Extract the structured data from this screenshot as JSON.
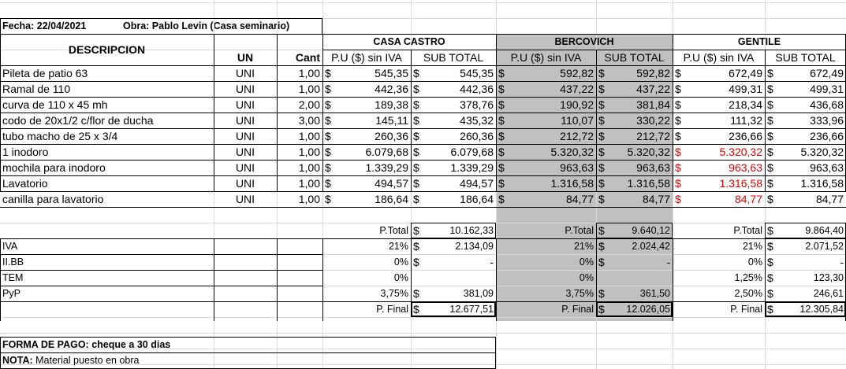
{
  "header": {
    "fecha": "Fecha: 22/04/2021",
    "obra": "Obra: Pablo Levin (Casa seminario)"
  },
  "columns": {
    "descripcion": "DESCRIPCION",
    "un": "UN",
    "cant": "Cant",
    "pu": "P.U ($) sin IVA",
    "sub": "SUB TOTAL"
  },
  "vendors": [
    {
      "name": "CASA CASTRO"
    },
    {
      "name": "BERCOVICH"
    },
    {
      "name": "GENTILE"
    }
  ],
  "currency": "$",
  "items": [
    {
      "desc": "Pileta de patio 63",
      "un": "UNI",
      "cant": "1,00",
      "vals": [
        "545,35",
        "545,35",
        "592,82",
        "592,82",
        "672,49",
        "672,49"
      ]
    },
    {
      "desc": "Ramal de 110",
      "un": "UNI",
      "cant": "1,00",
      "vals": [
        "442,36",
        "442,36",
        "437,22",
        "437,22",
        "499,31",
        "499,31"
      ]
    },
    {
      "desc": "curva de 110 x 45 mh",
      "un": "UNI",
      "cant": "2,00",
      "vals": [
        "189,38",
        "378,76",
        "190,92",
        "381,84",
        "218,34",
        "436,68"
      ]
    },
    {
      "desc": "codo de 20x1/2 c/flor de ducha",
      "un": "UNI",
      "cant": "3,00",
      "vals": [
        "145,11",
        "435,32",
        "110,07",
        "330,22",
        "111,32",
        "333,96"
      ]
    },
    {
      "desc": "tubo macho de 25 x 3/4",
      "un": "UNI",
      "cant": "1,00",
      "vals": [
        "260,36",
        "260,36",
        "212,72",
        "212,72",
        "236,66",
        "236,66"
      ]
    },
    {
      "desc": "1 inodoro",
      "un": "UNI",
      "cant": "1,00",
      "vals": [
        "6.079,68",
        "6.079,68",
        "5.320,32",
        "5.320,32",
        "5.320,32",
        "5.320,32"
      ],
      "red": true
    },
    {
      "desc": "mochila para inodoro",
      "un": "UNI",
      "cant": "1,00",
      "vals": [
        "1.339,29",
        "1.339,29",
        "963,63",
        "963,63",
        "963,63",
        "963,63"
      ],
      "red": true
    },
    {
      "desc": "Lavatorio",
      "un": "UNI",
      "cant": "1,00",
      "vals": [
        "494,57",
        "494,57",
        "1.316,58",
        "1.316,58",
        "1.316,58",
        "1.316,58"
      ],
      "red": true
    },
    {
      "desc": "canilla para lavatorio",
      "un": "UNI",
      "cant": "1,00",
      "vals": [
        "186,64",
        "186,64",
        "84,77",
        "84,77",
        "84,77",
        "84,77"
      ],
      "red": true
    }
  ],
  "summary": [
    {
      "label": "",
      "cells": [
        [
          "P.Total",
          "10.162,33"
        ],
        [
          "P.Total",
          "9.640,12"
        ],
        [
          "P.Total",
          "9.864,40"
        ]
      ]
    },
    {
      "label": "IVA",
      "cells": [
        [
          "21%",
          "2.134,09"
        ],
        [
          "21%",
          "2.024,42"
        ],
        [
          "21%",
          "2.071,52"
        ]
      ]
    },
    {
      "label": "II.BB",
      "cells": [
        [
          "0%",
          "-"
        ],
        [
          "0%",
          "-"
        ],
        [
          "0%",
          "-"
        ]
      ]
    },
    {
      "label": "TEM",
      "cells": [
        [
          "0%",
          null
        ],
        [
          "0%",
          null
        ],
        [
          "1,25%",
          "123,30"
        ]
      ]
    },
    {
      "label": "PyP",
      "cells": [
        [
          "3,75%",
          "381,09"
        ],
        [
          "3,75%",
          "361,50"
        ],
        [
          "2,50%",
          "246,61"
        ]
      ]
    },
    {
      "label": "",
      "cells": [
        [
          "P. Final",
          "12.677,51"
        ],
        [
          "P. Final",
          "12.026,05"
        ],
        [
          "P. Final",
          "12.305,84"
        ]
      ]
    }
  ],
  "footer": {
    "forma_pago": "FORMA DE PAGO: cheque a 30 dias",
    "nota_label": "NOTA:",
    "nota_text": " Material puesto en obra"
  }
}
